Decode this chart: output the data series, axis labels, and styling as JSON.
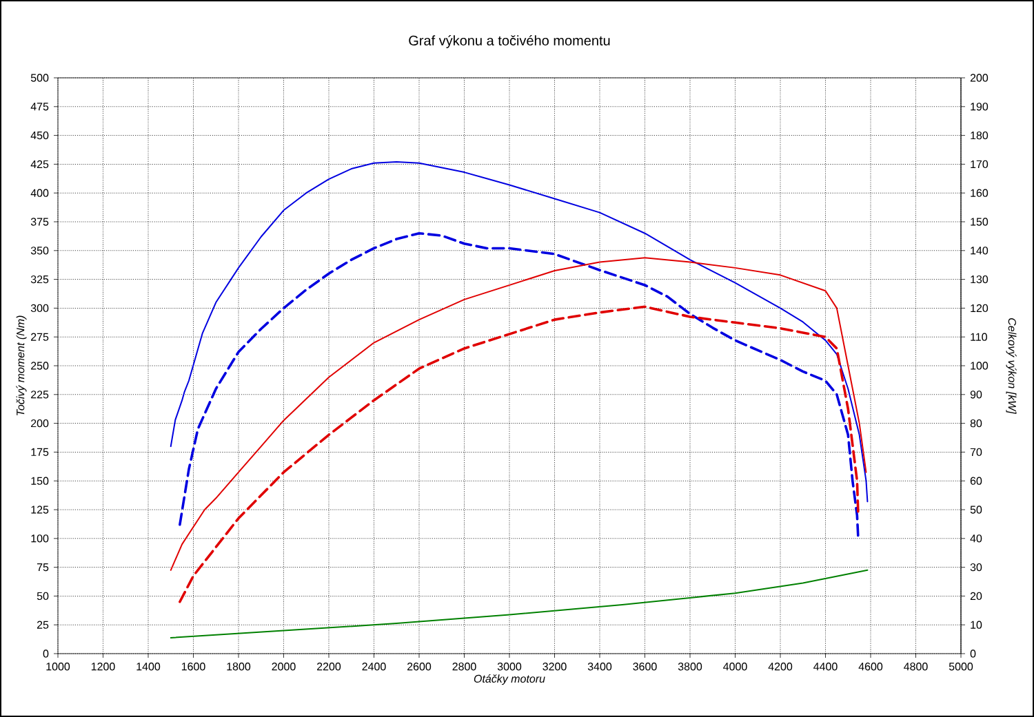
{
  "chart_data": {
    "type": "line",
    "title": "Graf výkonu a točivého momentu",
    "xlabel": "Otáčky motoru",
    "ylabel": "Točivý moment (Nm)",
    "y2label": "Celkový výkon [kW]",
    "xlim": [
      1000,
      5000
    ],
    "xticks": [
      1000,
      1200,
      1400,
      1600,
      1800,
      2000,
      2200,
      2400,
      2600,
      2800,
      3000,
      3200,
      3400,
      3600,
      3800,
      4000,
      4200,
      4400,
      4600,
      4800,
      5000
    ],
    "ylim": [
      0,
      500
    ],
    "yticks": [
      0,
      25,
      50,
      75,
      100,
      125,
      150,
      175,
      200,
      225,
      250,
      275,
      300,
      325,
      350,
      375,
      400,
      425,
      450,
      475,
      500
    ],
    "y2lim": [
      0,
      200
    ],
    "y2ticks": [
      0,
      10,
      20,
      30,
      40,
      50,
      60,
      70,
      80,
      90,
      100,
      110,
      120,
      130,
      140,
      150,
      160,
      170,
      180,
      190,
      200
    ],
    "grid": true,
    "marker": "none",
    "series": [
      {
        "color": "#0000e0",
        "line_style": "solid",
        "axis": "y",
        "x": [
          1500,
          1520,
          1550,
          1560,
          1580,
          1640,
          1700,
          1800,
          1900,
          2000,
          2100,
          2200,
          2300,
          2400,
          2500,
          2600,
          2800,
          3000,
          3200,
          3400,
          3600,
          3800,
          4000,
          4200,
          4300,
          4400,
          4450,
          4500,
          4550,
          4580,
          4586
        ],
        "values": [
          180,
          203,
          220,
          227,
          237,
          278,
          305,
          335,
          362,
          385,
          400,
          412,
          421,
          426,
          427,
          426,
          418,
          407,
          395,
          383,
          365,
          342,
          322,
          300,
          288,
          272,
          260,
          230,
          190,
          150,
          132
        ]
      },
      {
        "color": "#0000e0",
        "line_style": "dashed",
        "axis": "y",
        "x": [
          1540,
          1580,
          1620,
          1700,
          1800,
          1900,
          2000,
          2100,
          2200,
          2300,
          2400,
          2500,
          2600,
          2700,
          2800,
          2900,
          3000,
          3200,
          3400,
          3600,
          3700,
          3800,
          3900,
          4000,
          4200,
          4300,
          4400,
          4450,
          4500,
          4520,
          4540,
          4545
        ],
        "values": [
          112,
          160,
          195,
          230,
          262,
          282,
          300,
          316,
          330,
          342,
          352,
          360,
          365,
          363,
          356,
          352,
          352,
          347,
          333,
          320,
          310,
          295,
          283,
          272,
          255,
          245,
          237,
          225,
          190,
          150,
          120,
          100
        ]
      },
      {
        "color": "#e00000",
        "line_style": "solid",
        "axis": "y2",
        "x": [
          1500,
          1550,
          1600,
          1650,
          1700,
          1800,
          1900,
          2000,
          2200,
          2400,
          2600,
          2800,
          3000,
          3200,
          3400,
          3600,
          3800,
          4000,
          4200,
          4400,
          4450,
          4500,
          4550,
          4580
        ],
        "values": [
          29,
          38,
          44,
          50,
          54,
          63,
          72,
          81,
          96,
          108,
          116,
          123,
          128,
          133,
          136,
          137.5,
          136,
          134,
          131.5,
          126,
          120,
          100,
          80,
          63
        ]
      },
      {
        "color": "#e00000",
        "line_style": "dashed",
        "axis": "y2",
        "x": [
          1540,
          1600,
          1700,
          1800,
          1900,
          2000,
          2200,
          2400,
          2600,
          2800,
          3000,
          3200,
          3400,
          3600,
          3800,
          4000,
          4200,
          4400,
          4450,
          4500,
          4540,
          4545
        ],
        "values": [
          18,
          27,
          37,
          47,
          55,
          63,
          76,
          88,
          99,
          106,
          111,
          116,
          118.5,
          120.5,
          117,
          115,
          113,
          110,
          106,
          85,
          60,
          48
        ]
      },
      {
        "color": "#008000",
        "line_style": "solid",
        "axis": "y2",
        "x": [
          1500,
          2000,
          2500,
          3000,
          3500,
          4000,
          4300,
          4586
        ],
        "values": [
          5.5,
          8,
          10.5,
          13.5,
          17,
          21,
          24.5,
          29
        ]
      }
    ]
  }
}
